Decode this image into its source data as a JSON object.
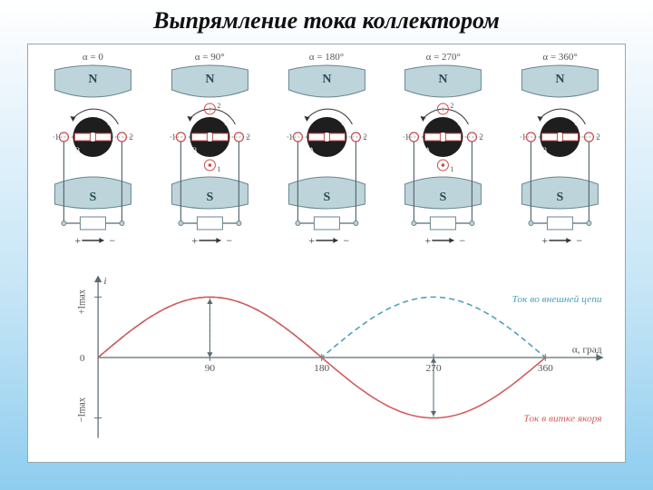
{
  "title": "Выпрямление тока коллектором",
  "title_fontsize": 26,
  "colors": {
    "pole_fill": "#bcd4da",
    "pole_stroke": "#6a8590",
    "rotor": "#1e1e1e",
    "brush_stroke": "#c94b4b",
    "text": "#555",
    "axis": "#5a6a70",
    "curve_ext": "#4aa0b8",
    "curve_arm": "#d15b5b",
    "grid_dash": "#8aa0a7"
  },
  "generators": [
    {
      "alpha": "α = 0",
      "brushLeft": "1",
      "brushRight": "2",
      "mark": "none",
      "arrow_bottom": true,
      "arrow_top": false,
      "top_label": "A",
      "bot_label": "B"
    },
    {
      "alpha": "α = 90°",
      "brushLeft": "1",
      "brushRight": "2",
      "mark": "plus",
      "arrow_bottom": true,
      "arrow_top": false,
      "top_label": "A",
      "bot_label": "B"
    },
    {
      "alpha": "α = 180°",
      "brushLeft": "1",
      "brushRight": "2",
      "mark": "none",
      "arrow_bottom": true,
      "arrow_top": false,
      "top_label": "B",
      "bot_label": "A"
    },
    {
      "alpha": "α = 270°",
      "brushLeft": "1",
      "brushRight": "2",
      "mark": "plus",
      "arrow_bottom": true,
      "arrow_top": false,
      "top_label": "B",
      "bot_label": "A"
    },
    {
      "alpha": "α = 360°",
      "brushLeft": "1",
      "brushRight": "2",
      "mark": "none",
      "arrow_bottom": true,
      "arrow_top": false,
      "top_label": "A",
      "bot_label": "B"
    }
  ],
  "pole_top": "N",
  "pole_bot": "S",
  "plus": "+",
  "minus": "−",
  "chart": {
    "xlabel": "α, град",
    "ylabel_top": "+Imax",
    "ylabel_bot": "−Imax",
    "y_zero": "0",
    "xticks": [
      "90",
      "180",
      "270",
      "360"
    ],
    "legend_ext": "Ток во внешней цепи",
    "legend_arm": "Ток в витке якоря",
    "series": {
      "armature_sine": {
        "amp": 1,
        "period_deg": 360,
        "color_key": "curve_arm",
        "dash": false
      },
      "external_abs": {
        "amp": 1,
        "period_deg": 180,
        "color_key": "curve_ext",
        "dash": true
      }
    }
  }
}
